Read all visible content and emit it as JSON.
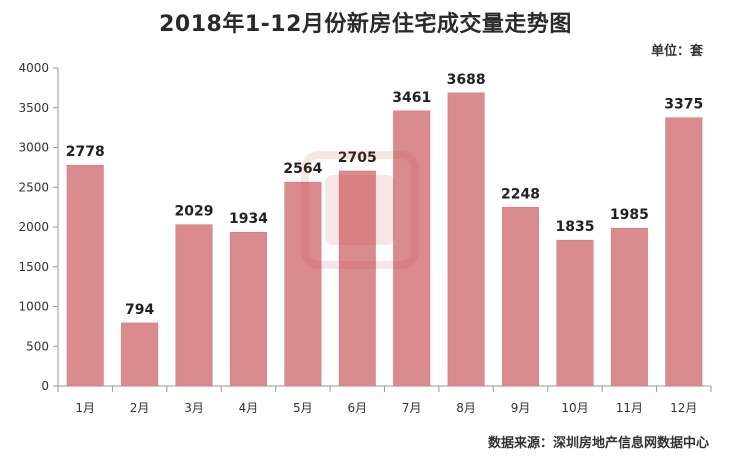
{
  "title": "2018年1-12月份新房住宅成交量走势图",
  "unit_label": "单位：套",
  "source_label": "数据来源：深圳房地产信息网数据中心",
  "colors": {
    "bar": "#d98b8d",
    "bar_edge": "#c97577",
    "axis": "#999999",
    "watermark": "#cc3333"
  },
  "chart_data": {
    "type": "bar",
    "title": "2018年1-12月份新房住宅成交量走势图",
    "categories": [
      "1月",
      "2月",
      "3月",
      "4月",
      "5月",
      "6月",
      "7月",
      "8月",
      "9月",
      "10月",
      "11月",
      "12月"
    ],
    "values": [
      2778,
      794,
      2029,
      1934,
      2564,
      2705,
      3461,
      3688,
      2248,
      1835,
      1985,
      3375
    ],
    "xlabel": "",
    "ylabel": "",
    "ylim": [
      0,
      4000
    ],
    "yticks": [
      0,
      500,
      1000,
      1500,
      2000,
      2500,
      3000,
      3500,
      4000
    ],
    "grid": false,
    "legend": "none",
    "data_labels": true
  }
}
